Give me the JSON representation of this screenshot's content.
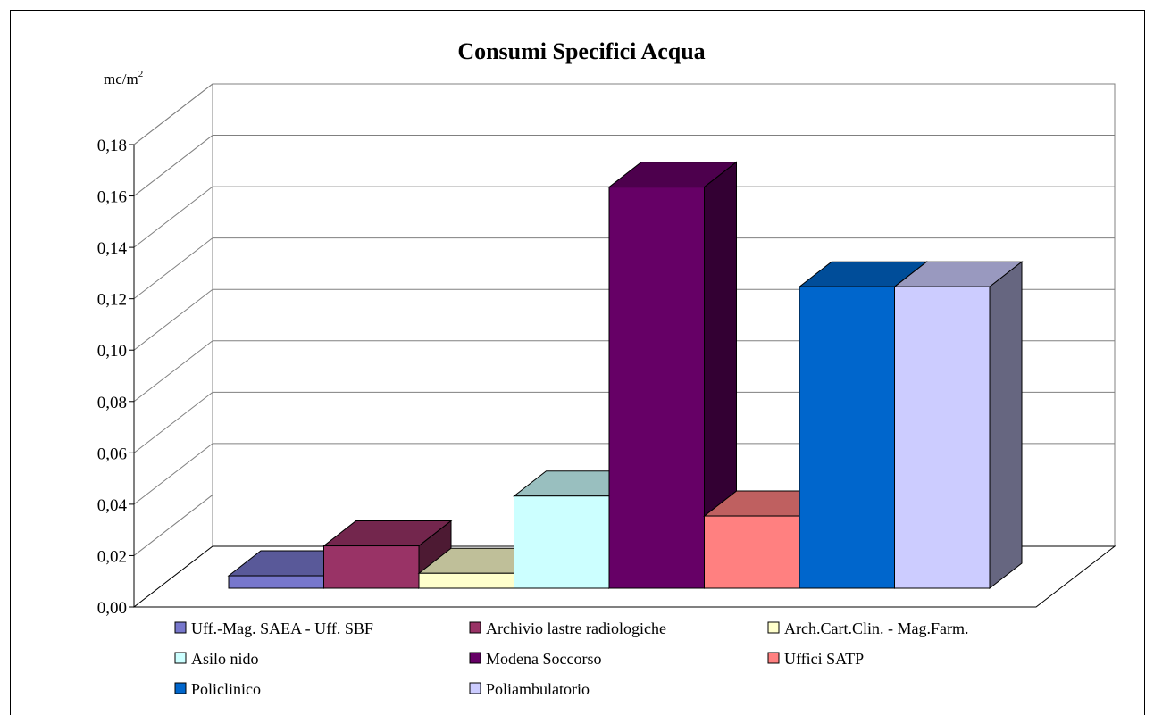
{
  "chart_data": {
    "type": "bar",
    "title": "Consumi Specifici Acqua",
    "ylabel": "mc/m",
    "ylabel_sup": "2",
    "ylim": [
      0,
      0.18
    ],
    "ytick_labels": [
      "0,00",
      "0,02",
      "0,04",
      "0,06",
      "0,08",
      "0,10",
      "0,12",
      "0,14",
      "0,16",
      "0,18"
    ],
    "grid": true,
    "legend_position": "bottom",
    "series": [
      {
        "name": "Uff.-Mag. SAEA - Uff. SBF",
        "value": 0.005,
        "color": "#7777cc"
      },
      {
        "name": "Archivio lastre radiologiche",
        "value": 0.017,
        "color": "#993366"
      },
      {
        "name": "Arch.Cart.Clin. - Mag.Farm.",
        "value": 0.006,
        "color": "#ffffcc"
      },
      {
        "name": "Asilo nido",
        "value": 0.037,
        "color": "#ccffff"
      },
      {
        "name": "Modena Soccorso",
        "value": 0.161,
        "color": "#660066"
      },
      {
        "name": "Uffici SATP",
        "value": 0.029,
        "color": "#ff8080"
      },
      {
        "name": "Policlinico",
        "value": 0.121,
        "color": "#0066cc"
      },
      {
        "name": "Poliambulatorio",
        "value": 0.121,
        "color": "#ccccff"
      }
    ]
  }
}
